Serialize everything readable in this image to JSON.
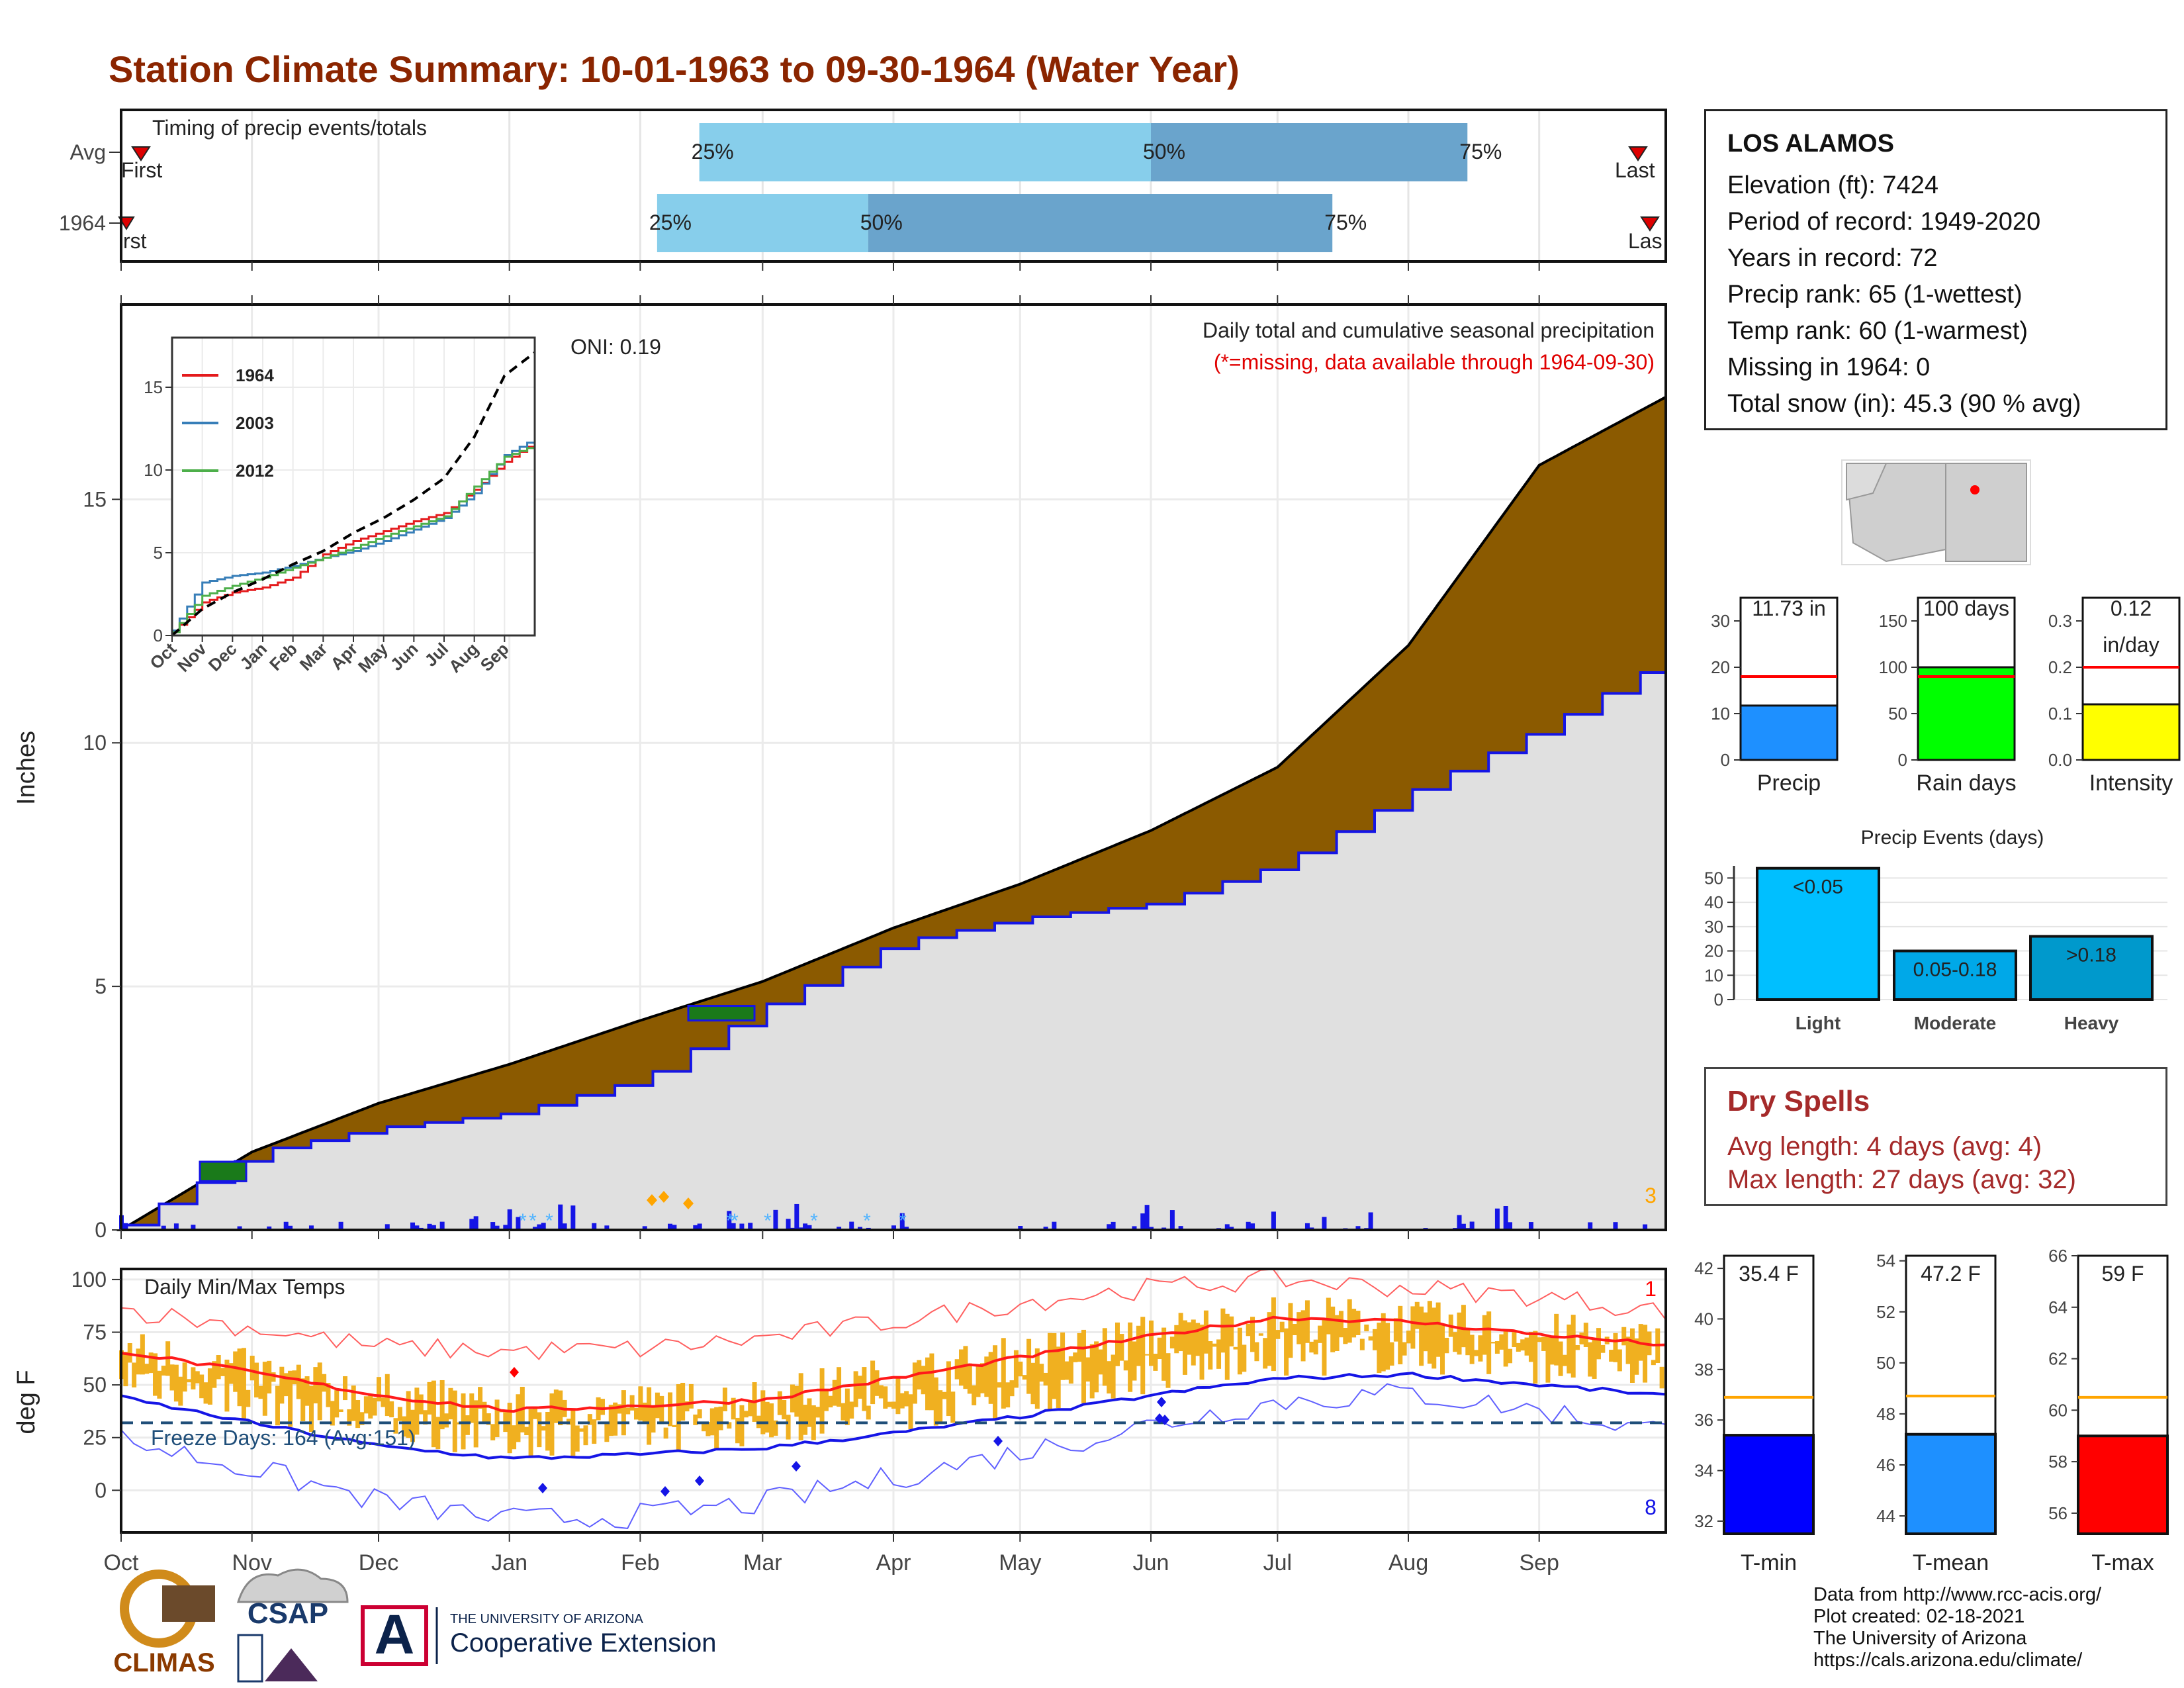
{
  "title": "Station Climate Summary: 10-01-1963 to 09-30-1964 (Water Year)",
  "timing_panel": {
    "label": "Timing of precip events/totals",
    "rows": [
      {
        "label": "Avg",
        "first_label": "First",
        "last_label": "Last",
        "p25_label": "25%",
        "p50_label": "50%",
        "p75_label": "75%",
        "p25": "Feb 15",
        "p50": "Jun 01",
        "p75": "Aug 15"
      },
      {
        "label": "1964",
        "first_label": "rst",
        "last_label": "Las",
        "p25_label": "25%",
        "p50_label": "50%",
        "p75_label": "75%",
        "p25": "Feb 05",
        "p50": "Mar 26",
        "p75": "Jul 14"
      }
    ]
  },
  "precip_panel": {
    "ylabel": "Inches",
    "header": "Daily total and cumulative seasonal precipitation",
    "missing_note": "(*=missing, data available through 1964-09-30)",
    "oni_label": "ONI: 0.19",
    "missing_count": "3",
    "y_ticks": [
      "0",
      "5",
      "10",
      "15"
    ]
  },
  "inset": {
    "series": [
      {
        "name": "1964",
        "color": "#e41a1c"
      },
      {
        "name": "2003",
        "color": "#377eb8"
      },
      {
        "name": "2012",
        "color": "#4daf4a"
      }
    ],
    "x_ticks": [
      "Oct",
      "Nov",
      "Dec",
      "Jan",
      "Feb",
      "Mar",
      "Apr",
      "May",
      "Jun",
      "Jul",
      "Aug",
      "Sep"
    ],
    "y_ticks": [
      "0",
      "5",
      "10",
      "15"
    ]
  },
  "temp_panel": {
    "label": "Daily Min/Max Temps",
    "ylabel": "deg F",
    "freeze_label": "Freeze Days: 164 (Avg:151)",
    "record_high_count": "1",
    "record_low_count": "8",
    "y_ticks": [
      "0",
      "25",
      "50",
      "75",
      "100"
    ]
  },
  "x_months": [
    "Oct",
    "Nov",
    "Dec",
    "Jan",
    "Feb",
    "Mar",
    "Apr",
    "May",
    "Jun",
    "Jul",
    "Aug",
    "Sep"
  ],
  "station": {
    "name": "LOS ALAMOS",
    "elevation": "Elevation (ft): 7424",
    "period": "Period of record: 1949-2020",
    "years": "Years in record: 72",
    "precip_rank": "Precip rank: 65 (1-wettest)",
    "temp_rank": "Temp rank: 60 (1-warmest)",
    "missing": "Missing in 1964: 0",
    "snow": "Total snow (in): 45.3 (90 % avg)"
  },
  "mini_bars": [
    {
      "label": "Precip",
      "value_label": "11.73 in",
      "value": 11.73,
      "avg": 18,
      "ymax": 35,
      "ticks": [
        "0",
        "10",
        "20",
        "30"
      ],
      "color": "#1e90ff"
    },
    {
      "label": "Rain days",
      "value_label": "100 days",
      "value": 100,
      "avg": 90,
      "ymax": 175,
      "ticks": [
        "0",
        "50",
        "100",
        "150"
      ],
      "color": "#00ff00"
    },
    {
      "label": "Intensity",
      "value_label": "0.12",
      "value_label2": "in/day",
      "value": 0.12,
      "avg": 0.2,
      "ymax": 0.35,
      "ticks": [
        "0.0",
        "0.1",
        "0.2",
        "0.3"
      ],
      "color": "#ffff00"
    }
  ],
  "precip_events": {
    "title": "Precip Events (days)",
    "bars": [
      {
        "label": "Light",
        "range": "<0.05",
        "value": 54,
        "color": "#00bfff"
      },
      {
        "label": "Moderate",
        "range": "0.05-0.18",
        "value": 20,
        "color": "#00a8e8"
      },
      {
        "label": "Heavy",
        "range": ">0.18",
        "value": 26,
        "color": "#0099cc"
      }
    ],
    "y_ticks": [
      "0",
      "10",
      "20",
      "30",
      "40",
      "50"
    ]
  },
  "dry_spells": {
    "title": "Dry Spells",
    "avg_length": "Avg length: 4 days (avg: 4)",
    "max_length": "Max length: 27 days (avg: 32)"
  },
  "temp_bars": [
    {
      "label": "T-min",
      "value_label": "35.4 F",
      "value": 35.4,
      "avg": 36.9,
      "ymin": 31.5,
      "ymax": 42.5,
      "ticks": [
        "32",
        "34",
        "36",
        "38",
        "40",
        "42"
      ],
      "color": "#0000ff"
    },
    {
      "label": "T-mean",
      "value_label": "47.2 F",
      "value": 47.2,
      "avg": 48.7,
      "ymin": 43.3,
      "ymax": 54.2,
      "ticks": [
        "44",
        "46",
        "48",
        "50",
        "52",
        "54"
      ],
      "color": "#1e90ff"
    },
    {
      "label": "T-max",
      "value_label": "59 F",
      "value": 59,
      "avg": 60.5,
      "ymin": 55.2,
      "ymax": 66,
      "ticks": [
        "56",
        "58",
        "60",
        "62",
        "64",
        "66"
      ],
      "color": "#ff0000"
    }
  ],
  "logos": {
    "climas": "CLIMAS",
    "csap": "CSAP",
    "ua_top": "THE UNIVERSITY OF ARIZONA",
    "ua_bottom": "Cooperative Extension"
  },
  "credits": [
    "Data from http://www.rcc-acis.org/",
    "Plot created: 02-18-2021",
    "The University of Arizona",
    "https://cals.arizona.edu/climate/"
  ],
  "chart_data": [
    {
      "type": "area",
      "title": "Daily total and cumulative seasonal precipitation",
      "ylabel": "Inches",
      "ylim": [
        0,
        19
      ],
      "x": [
        "Oct",
        "Nov",
        "Dec",
        "Jan",
        "Feb",
        "Mar",
        "Apr",
        "May",
        "Jun",
        "Jul",
        "Aug",
        "Sep",
        "Sep 30"
      ],
      "series": [
        {
          "name": "average cumulative",
          "values": [
            0,
            1.6,
            2.6,
            3.4,
            4.3,
            5.1,
            6.2,
            7.1,
            8.2,
            9.5,
            12.0,
            15.7,
            17.1
          ]
        },
        {
          "name": "1964 cumulative",
          "values": [
            0.1,
            1.6,
            2.1,
            2.4,
            3.1,
            4.6,
            5.9,
            6.4,
            6.7,
            7.5,
            9.0,
            10.3,
            11.73
          ]
        }
      ]
    },
    {
      "type": "line",
      "title": "",
      "x": [
        "Oct",
        "Nov",
        "Dec",
        "Jan",
        "Feb",
        "Mar",
        "Apr",
        "May",
        "Jun",
        "Jul",
        "Aug",
        "Sep",
        "Sep 30"
      ],
      "ylim": [
        0,
        18
      ],
      "series": [
        {
          "name": "1964",
          "values": [
            0.2,
            2.0,
            2.6,
            2.9,
            3.5,
            4.9,
            5.7,
            6.3,
            6.9,
            7.4,
            8.8,
            10.5,
            11.7
          ]
        },
        {
          "name": "2003",
          "values": [
            0.3,
            3.2,
            3.6,
            3.8,
            4.2,
            4.7,
            5.1,
            5.7,
            6.4,
            7.1,
            8.6,
            10.9,
            11.9
          ]
        },
        {
          "name": "2012",
          "values": [
            0.2,
            2.4,
            3.0,
            3.5,
            4.1,
            4.7,
            5.3,
            6.0,
            6.6,
            7.2,
            9.0,
            10.8,
            11.5
          ]
        },
        {
          "name": "average",
          "values": [
            0,
            1.6,
            2.6,
            3.4,
            4.3,
            5.1,
            6.2,
            7.1,
            8.2,
            9.5,
            12.0,
            15.7,
            17.1
          ]
        }
      ]
    },
    {
      "type": "line",
      "title": "Daily Min/Max Temps",
      "ylabel": "deg F",
      "ylim": [
        -20,
        105
      ],
      "x": [
        "Oct",
        "Nov",
        "Dec",
        "Jan",
        "Feb",
        "Mar",
        "Apr",
        "May",
        "Jun",
        "Jul",
        "Aug",
        "Sep",
        "Sep 30"
      ],
      "series": [
        {
          "name": "avg max",
          "values": [
            66,
            56,
            45,
            38,
            40,
            43,
            53,
            63,
            73,
            82,
            80,
            74,
            69
          ]
        },
        {
          "name": "avg min",
          "values": [
            44,
            32,
            21,
            15,
            17,
            20,
            27,
            35,
            45,
            53,
            55,
            50,
            45
          ]
        },
        {
          "name": "record max",
          "values": [
            86,
            77,
            68,
            66,
            67,
            72,
            80,
            89,
            96,
            100,
            96,
            92,
            85
          ]
        },
        {
          "name": "record min",
          "values": [
            24,
            10,
            -5,
            -14,
            -12,
            -6,
            6,
            18,
            31,
            42,
            46,
            38,
            28
          ]
        },
        {
          "name": "freeze line",
          "values": [
            32,
            32,
            32,
            32,
            32,
            32,
            32,
            32,
            32,
            32,
            32,
            32,
            32
          ]
        }
      ]
    },
    {
      "type": "bar",
      "title": "Precip Events (days)",
      "categories": [
        "Light",
        "Moderate",
        "Heavy"
      ],
      "values": [
        54,
        20,
        26
      ],
      "ylim": [
        0,
        55
      ]
    }
  ]
}
